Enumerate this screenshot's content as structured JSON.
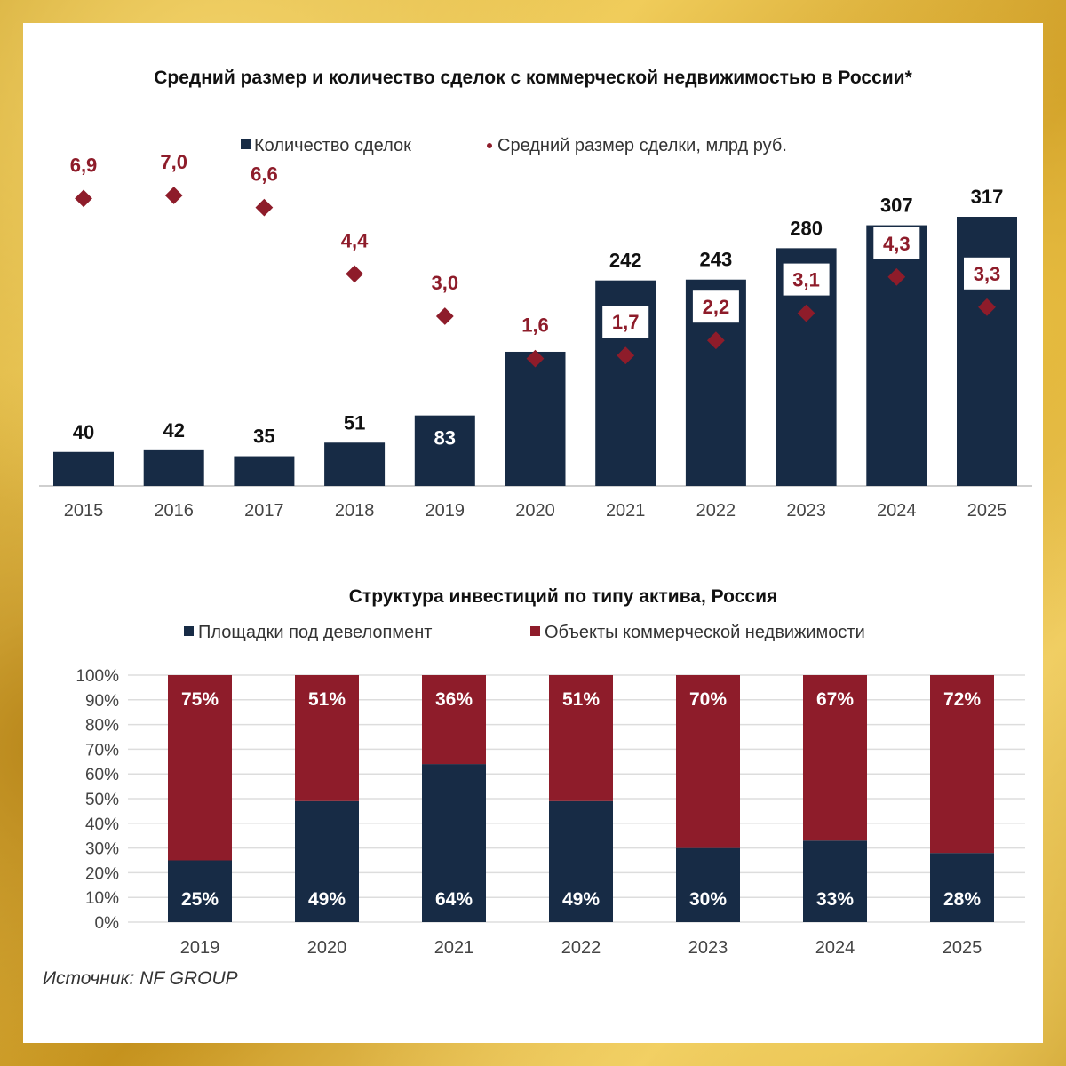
{
  "colors": {
    "navy": "#172b45",
    "red": "#8e1c2a",
    "grid": "#dddddd"
  },
  "source": "Источник: NF GROUP",
  "chart_data": [
    {
      "type": "bar+scatter",
      "title": "Средний размер и количество сделок с коммерческой недвижимостью в России*",
      "categories": [
        "2015",
        "2016",
        "2017",
        "2018",
        "2019",
        "2020",
        "2021",
        "2022",
        "2023",
        "2024",
        "2025"
      ],
      "series": [
        {
          "name": "Количество сделок",
          "kind": "bar",
          "values": [
            40,
            42,
            35,
            51,
            83,
            158,
            242,
            243,
            280,
            307,
            317
          ]
        },
        {
          "name": "Средний размер сделки, млрд руб.",
          "kind": "marker",
          "values": [
            6.9,
            7.0,
            6.6,
            4.4,
            3.0,
            1.6,
            1.7,
            2.2,
            3.1,
            4.3,
            3.3
          ],
          "labels": [
            "6,9",
            "7,0",
            "6,6",
            "4,4",
            "3,0",
            "1,6",
            "1,7",
            "2,2",
            "3,1",
            "4,3",
            "3,3"
          ]
        }
      ],
      "legend_position": "top-center"
    },
    {
      "type": "stacked-bar-100",
      "title": "Структура инвестиций по типу актива, Россия",
      "categories": [
        "2019",
        "2020",
        "2021",
        "2022",
        "2023",
        "2024",
        "2025"
      ],
      "series": [
        {
          "name": "Площадки под девелопмент",
          "values": [
            25,
            49,
            64,
            49,
            30,
            33,
            28
          ]
        },
        {
          "name": "Объекты коммерческой недвижимости",
          "values": [
            75,
            51,
            36,
            51,
            70,
            67,
            72
          ]
        }
      ],
      "yticks": [
        "100%",
        "90%",
        "80%",
        "70%",
        "60%",
        "50%",
        "40%",
        "30%",
        "20%",
        "10%",
        "0%"
      ],
      "ylim": [
        0,
        100
      ],
      "legend_position": "top-center"
    }
  ]
}
